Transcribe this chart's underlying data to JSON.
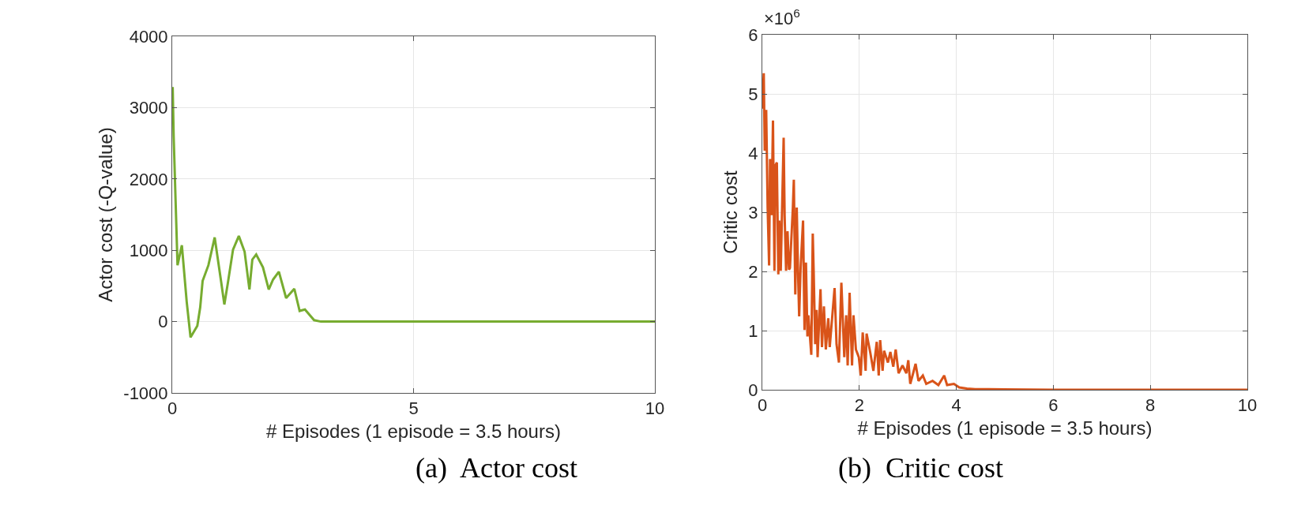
{
  "chart_data": [
    {
      "type": "line",
      "xlabel": "# Episodes (1 episode = 3.5 hours)",
      "ylabel": "Actor cost (-Q-value)",
      "xlim": [
        0,
        10
      ],
      "xticks": [
        0,
        5,
        10
      ],
      "ylim": [
        -1000,
        4000
      ],
      "yticks": [
        -1000,
        0,
        1000,
        2000,
        3000,
        4000
      ],
      "grid": true,
      "annotations": [
        "(a)  Actor cost"
      ],
      "series": [
        {
          "color": "#77ac30",
          "x": [
            0,
            0.01,
            0.03,
            0.11,
            0.2,
            0.3,
            0.38,
            0.52,
            0.58,
            0.63,
            0.75,
            0.88,
            1.02,
            1.08,
            1.15,
            1.26,
            1.38,
            1.5,
            1.6,
            1.66,
            1.74,
            1.88,
            2.0,
            2.09,
            2.21,
            2.36,
            2.53,
            2.64,
            2.75,
            2.94,
            3.08,
            5,
            10
          ],
          "values": [
            3000,
            3290,
            2600,
            790,
            1070,
            280,
            -220,
            -60,
            200,
            570,
            790,
            1180,
            530,
            240,
            530,
            1010,
            1200,
            980,
            450,
            870,
            940,
            760,
            450,
            590,
            700,
            330,
            460,
            150,
            170,
            20,
            0,
            0,
            0
          ]
        }
      ]
    },
    {
      "type": "line",
      "xlabel": "# Episodes (1 episode = 3.5 hours)",
      "ylabel": "Critic cost",
      "xlim": [
        0,
        10
      ],
      "xticks": [
        0,
        2,
        4,
        6,
        8,
        10
      ],
      "ylim": [
        0,
        6
      ],
      "yticks": [
        0,
        1,
        2,
        3,
        4,
        5,
        6
      ],
      "grid": true,
      "annotations": [
        "×10$^{6}$",
        "(b)  Critic cost"
      ],
      "series": [
        {
          "color": "#d95319",
          "x": [
            0,
            0.03,
            0.05,
            0.08,
            0.11,
            0.14,
            0.16,
            0.19,
            0.22,
            0.25,
            0.27,
            0.3,
            0.33,
            0.35,
            0.38,
            0.44,
            0.46,
            0.49,
            0.52,
            0.55,
            0.57,
            0.63,
            0.65,
            0.68,
            0.71,
            0.74,
            0.76,
            0.79,
            0.84,
            0.87,
            0.9,
            0.93,
            0.95,
            1.01,
            1.04,
            1.06,
            1.09,
            1.12,
            1.14,
            1.2,
            1.23,
            1.27,
            1.31,
            1.36,
            1.39,
            1.49,
            1.53,
            1.58,
            1.63,
            1.69,
            1.73,
            1.76,
            1.8,
            1.85,
            1.88,
            1.93,
            1.99,
            2.03,
            2.07,
            2.13,
            2.15,
            2.23,
            2.29,
            2.36,
            2.4,
            2.43,
            2.48,
            2.51,
            2.59,
            2.64,
            2.7,
            2.75,
            2.81,
            2.89,
            2.97,
            3.01,
            3.05,
            3.11,
            3.16,
            3.22,
            3.31,
            3.38,
            3.51,
            3.63,
            3.75,
            3.81,
            3.95,
            4.06,
            4.22,
            4.39,
            4.66,
            6,
            10
          ],
          "values": [
            4.75,
            5.35,
            4.04,
            4.73,
            3.08,
            2.1,
            3.9,
            2.95,
            4.55,
            2.01,
            3.79,
            3.84,
            1.95,
            2.86,
            2.01,
            4.26,
            2.95,
            2.01,
            2.68,
            2.03,
            2.06,
            3.08,
            3.55,
            1.61,
            3.08,
            1.88,
            1.24,
            2.06,
            2.86,
            1.01,
            2.15,
            0.9,
            1.26,
            0.59,
            2.64,
            1.97,
            0.77,
            1.35,
            0.55,
            1.7,
            0.72,
            1.41,
            0.68,
            1.21,
            0.72,
            1.72,
            0.77,
            0.46,
            1.81,
            0.55,
            1.26,
            0.41,
            1.64,
            0.41,
            1.26,
            0.68,
            0.55,
            0.24,
            0.97,
            0.32,
            0.95,
            0.61,
            0.32,
            0.81,
            0.24,
            0.84,
            0.32,
            0.66,
            0.46,
            0.64,
            0.39,
            0.68,
            0.28,
            0.41,
            0.28,
            0.5,
            0.1,
            0.28,
            0.44,
            0.15,
            0.24,
            0.1,
            0.15,
            0.08,
            0.24,
            0.08,
            0.1,
            0.04,
            0.02,
            0.01,
            0.01,
            0,
            0
          ]
        }
      ]
    }
  ]
}
